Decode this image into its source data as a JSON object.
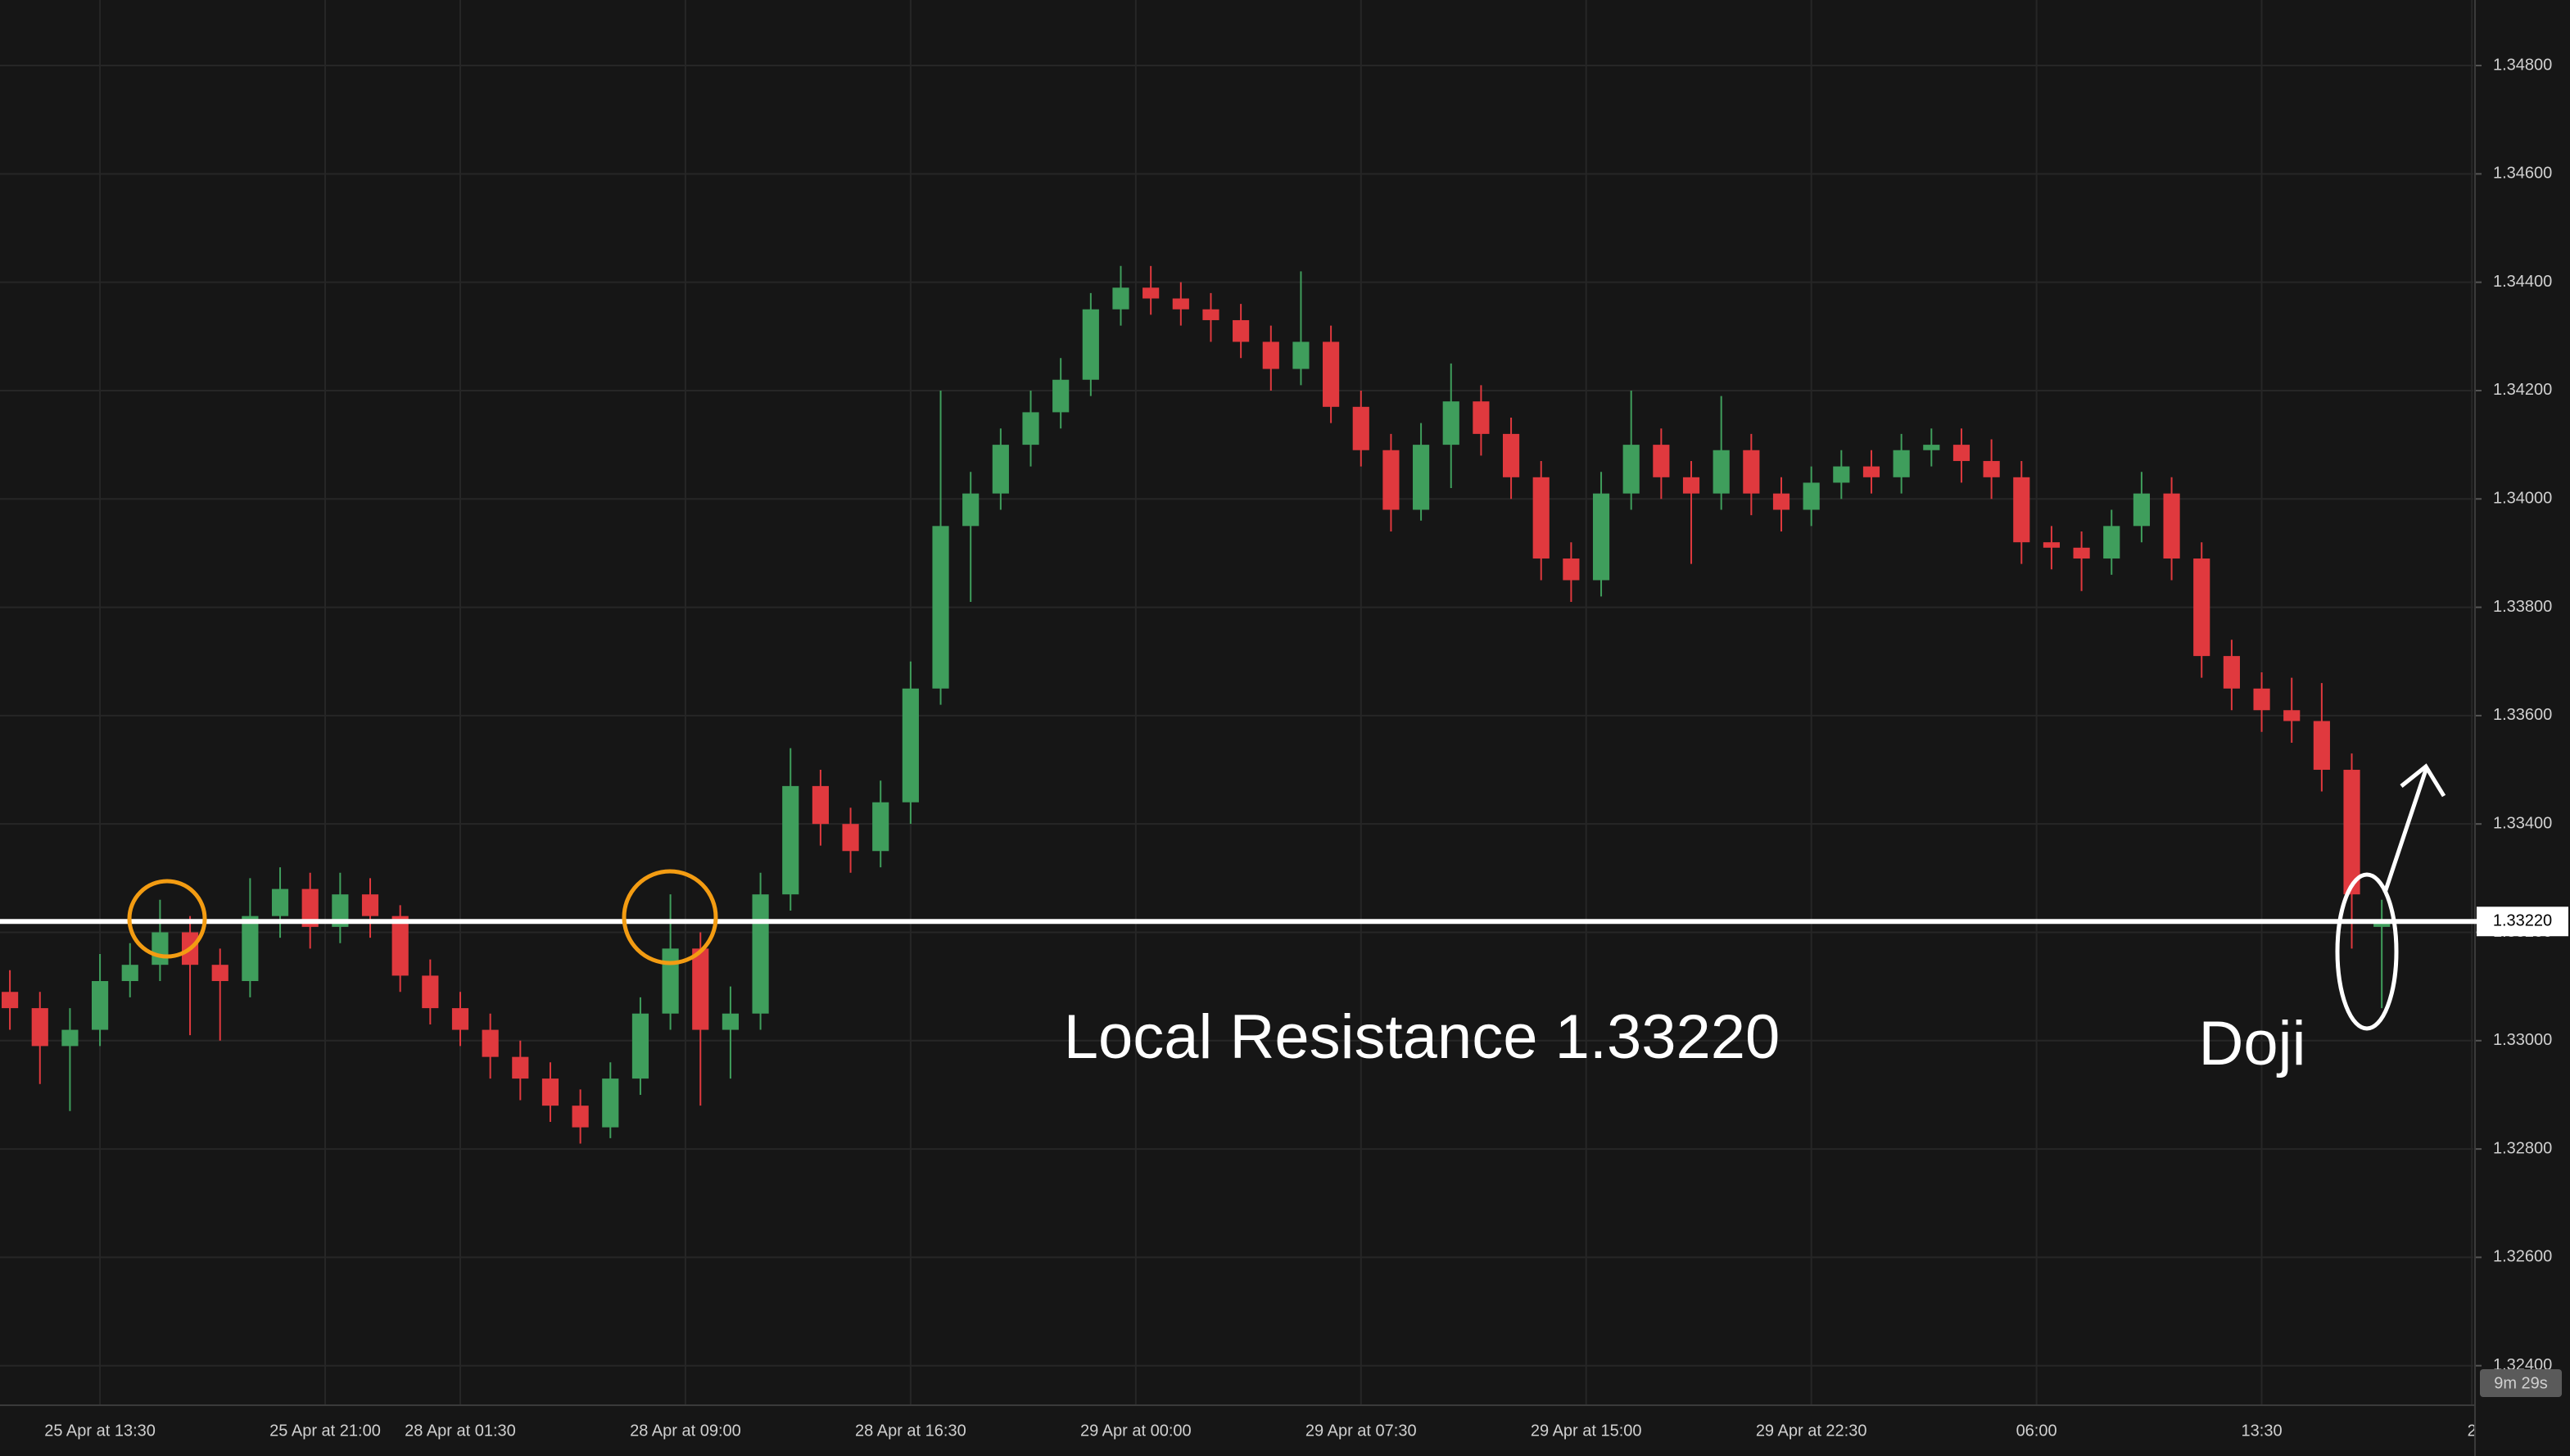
{
  "chart_data": {
    "type": "candlestick",
    "up_color": "#3f9e5c",
    "down_color": "#e0393e",
    "grid": true,
    "xlim": [
      -3.33,
      79.05
    ],
    "xticks": [
      {
        "value": 0,
        "label": "25 Apr at 13:30"
      },
      {
        "value": 7.5,
        "label": "25 Apr at 21:00"
      },
      {
        "value": 12,
        "label": "28 Apr at 01:30"
      },
      {
        "value": 19.5,
        "label": "28 Apr at 09:00"
      },
      {
        "value": 27,
        "label": "28 Apr at 16:30"
      },
      {
        "value": 34.5,
        "label": "29 Apr at 00:00"
      },
      {
        "value": 42,
        "label": "29 Apr at 07:30"
      },
      {
        "value": 49.5,
        "label": "29 Apr at 15:00"
      },
      {
        "value": 57,
        "label": "29 Apr at 22:30"
      },
      {
        "value": 64.5,
        "label": "06:00"
      },
      {
        "value": 72,
        "label": "13:30"
      },
      {
        "value": 79,
        "label": "2"
      }
    ],
    "ylim": [
      1.32327,
      1.34921
    ],
    "yticks": [
      {
        "value": 1.348,
        "label": "1.34800"
      },
      {
        "value": 1.346,
        "label": "1.34600"
      },
      {
        "value": 1.344,
        "label": "1.34400"
      },
      {
        "value": 1.342,
        "label": "1.34200"
      },
      {
        "value": 1.34,
        "label": "1.34000"
      },
      {
        "value": 1.338,
        "label": "1.33800"
      },
      {
        "value": 1.336,
        "label": "1.33600"
      },
      {
        "value": 1.334,
        "label": "1.33400"
      },
      {
        "value": 1.332,
        "label": "1.33200"
      },
      {
        "value": 1.33,
        "label": "1.33000"
      },
      {
        "value": 1.328,
        "label": "1.32800"
      },
      {
        "value": 1.326,
        "label": "1.32600"
      },
      {
        "value": 1.324,
        "label": "1.32400"
      }
    ],
    "open": [
      1.3309,
      1.3306,
      1.3299,
      1.3302,
      1.3311,
      1.3314,
      1.332,
      1.3314,
      1.3311,
      1.3323,
      1.3328,
      1.3321,
      1.3327,
      1.3323,
      1.3312,
      1.3306,
      1.3302,
      1.3297,
      1.3293,
      1.3288,
      1.3284,
      1.3293,
      1.3305,
      1.3317,
      1.3302,
      1.3305,
      1.3327,
      1.3347,
      1.334,
      1.3335,
      1.3344,
      1.3365,
      1.3395,
      1.3401,
      1.341,
      1.3416,
      1.3422,
      1.3435,
      1.3439,
      1.3437,
      1.3435,
      1.3433,
      1.3429,
      1.3424,
      1.3429,
      1.3417,
      1.3409,
      1.3398,
      1.341,
      1.3418,
      1.3412,
      1.3404,
      1.3389,
      1.3385,
      1.3401,
      1.341,
      1.3404,
      1.3401,
      1.3409,
      1.3401,
      1.3398,
      1.3403,
      1.3406,
      1.3404,
      1.3409,
      1.341,
      1.3407,
      1.3404,
      1.3392,
      1.3391,
      1.3389,
      1.3395,
      1.3401,
      1.3389,
      1.3371,
      1.3365,
      1.3361,
      1.3359,
      1.335,
      1.3321
    ],
    "high": [
      1.3313,
      1.3309,
      1.3306,
      1.3316,
      1.3318,
      1.3326,
      1.3323,
      1.3317,
      1.333,
      1.3332,
      1.3331,
      1.3331,
      1.333,
      1.3325,
      1.3315,
      1.3309,
      1.3305,
      1.33,
      1.3296,
      1.3291,
      1.3296,
      1.3308,
      1.3327,
      1.332,
      1.331,
      1.3331,
      1.3354,
      1.335,
      1.3343,
      1.3348,
      1.337,
      1.342,
      1.3405,
      1.3413,
      1.342,
      1.3426,
      1.3438,
      1.3443,
      1.3443,
      1.344,
      1.3438,
      1.3436,
      1.3432,
      1.3442,
      1.3432,
      1.342,
      1.3412,
      1.3414,
      1.3425,
      1.3421,
      1.3415,
      1.3407,
      1.3392,
      1.3405,
      1.342,
      1.3413,
      1.3407,
      1.3419,
      1.3412,
      1.3404,
      1.3406,
      1.3409,
      1.3409,
      1.3412,
      1.3413,
      1.3413,
      1.3411,
      1.3407,
      1.3395,
      1.3394,
      1.3398,
      1.3405,
      1.3404,
      1.3392,
      1.3374,
      1.3368,
      1.3367,
      1.3366,
      1.3353,
      1.3326
    ],
    "low": [
      1.3302,
      1.3292,
      1.3287,
      1.3299,
      1.3308,
      1.3311,
      1.3301,
      1.33,
      1.3308,
      1.3319,
      1.3317,
      1.3318,
      1.3319,
      1.3309,
      1.3303,
      1.3299,
      1.3293,
      1.3289,
      1.3285,
      1.3281,
      1.3282,
      1.329,
      1.3302,
      1.3288,
      1.3293,
      1.3302,
      1.3324,
      1.3336,
      1.3331,
      1.3332,
      1.334,
      1.3362,
      1.3381,
      1.3398,
      1.3406,
      1.3413,
      1.3419,
      1.3432,
      1.3434,
      1.3432,
      1.3429,
      1.3426,
      1.342,
      1.3421,
      1.3414,
      1.3406,
      1.3394,
      1.3396,
      1.3402,
      1.3408,
      1.34,
      1.3385,
      1.3381,
      1.3382,
      1.3398,
      1.34,
      1.3388,
      1.3398,
      1.3397,
      1.3394,
      1.3395,
      1.34,
      1.3401,
      1.3401,
      1.3406,
      1.3403,
      1.34,
      1.3388,
      1.3387,
      1.3383,
      1.3386,
      1.3392,
      1.3385,
      1.3367,
      1.3361,
      1.3357,
      1.3355,
      1.3346,
      1.3317,
      1.3306
    ],
    "close": [
      1.3306,
      1.3299,
      1.3302,
      1.3311,
      1.3314,
      1.332,
      1.3314,
      1.3311,
      1.3323,
      1.3328,
      1.3321,
      1.3327,
      1.3323,
      1.3312,
      1.3306,
      1.3302,
      1.3297,
      1.3293,
      1.3288,
      1.3284,
      1.3293,
      1.3305,
      1.3317,
      1.3302,
      1.3305,
      1.3327,
      1.3347,
      1.334,
      1.3335,
      1.3344,
      1.3365,
      1.3395,
      1.3401,
      1.341,
      1.3416,
      1.3422,
      1.3435,
      1.3439,
      1.3437,
      1.3435,
      1.3433,
      1.3429,
      1.3424,
      1.3429,
      1.3417,
      1.3409,
      1.3398,
      1.341,
      1.3418,
      1.3412,
      1.3404,
      1.3389,
      1.3385,
      1.3401,
      1.341,
      1.3404,
      1.3401,
      1.3409,
      1.3401,
      1.3398,
      1.3403,
      1.3406,
      1.3404,
      1.3409,
      1.341,
      1.3407,
      1.3404,
      1.3392,
      1.3391,
      1.3389,
      1.3395,
      1.3401,
      1.3389,
      1.3371,
      1.3365,
      1.3361,
      1.3359,
      1.335,
      1.3327,
      1.3322
    ],
    "resistance": {
      "value": 1.3322,
      "label": "1.33220"
    },
    "annotation": "Local Resistance 1.33220",
    "pattern_label": "Doji",
    "countdown": "9m 29s"
  }
}
